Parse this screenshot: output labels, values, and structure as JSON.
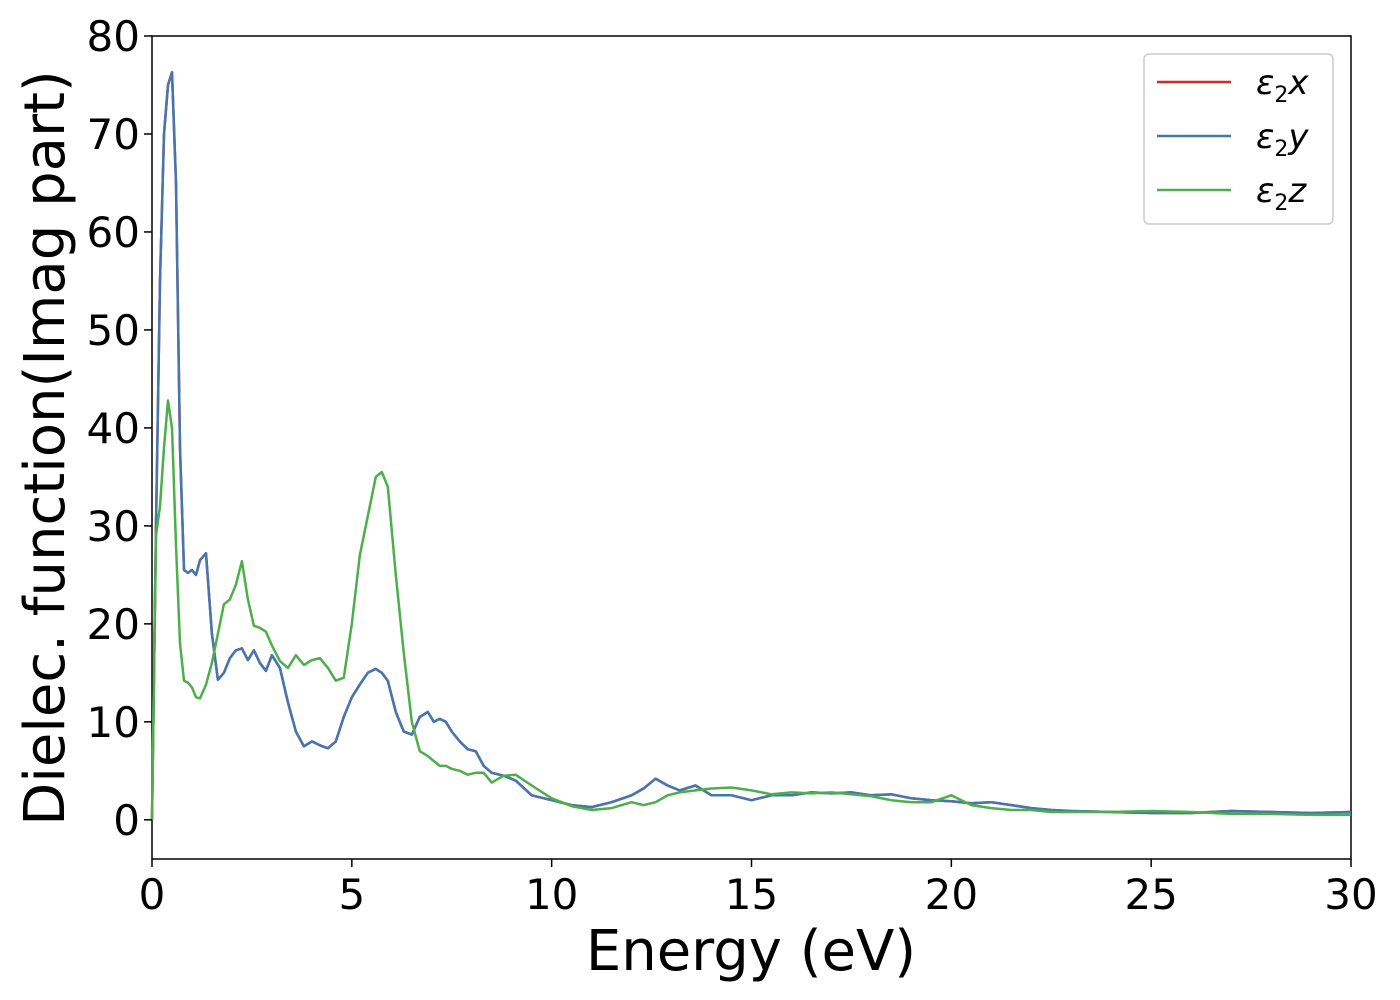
{
  "chart_data": {
    "type": "line",
    "xlabel": "Energy (eV)",
    "ylabel": "Dielec. function(Imag part)",
    "xlim": [
      0,
      30
    ],
    "ylim": [
      -4,
      80
    ],
    "xticks": [
      0,
      5,
      10,
      15,
      20,
      25,
      30
    ],
    "yticks": [
      0,
      10,
      20,
      30,
      40,
      50,
      60,
      70,
      80
    ],
    "grid": false,
    "legend_position": "top-right",
    "series": [
      {
        "name": "ε2x",
        "legend_base": "ε",
        "legend_sub": "2",
        "legend_var": "x",
        "color": "#d62728",
        "x": [
          0,
          0.1,
          0.2,
          0.3,
          0.4,
          0.5,
          0.6,
          0.7,
          0.8,
          0.9,
          1.0,
          1.1,
          1.2,
          1.35,
          1.5,
          1.65,
          1.8,
          1.95,
          2.1,
          2.25,
          2.4,
          2.55,
          2.7,
          2.85,
          3.0,
          3.2,
          3.4,
          3.6,
          3.8,
          4.0,
          4.2,
          4.4,
          4.6,
          4.8,
          5.0,
          5.2,
          5.4,
          5.6,
          5.75,
          5.9,
          6.1,
          6.3,
          6.5,
          6.7,
          6.9,
          7.05,
          7.2,
          7.35,
          7.5,
          7.7,
          7.9,
          8.1,
          8.3,
          8.5,
          8.8,
          9.1,
          9.5,
          10.0,
          10.5,
          11.0,
          11.5,
          12.0,
          12.3,
          12.6,
          12.9,
          13.2,
          13.6,
          14.0,
          14.5,
          15.0,
          15.5,
          16.0,
          16.5,
          17.0,
          17.5,
          18.0,
          18.5,
          19.0,
          19.5,
          20.0,
          20.5,
          21.0,
          21.5,
          22.0,
          22.5,
          23.0,
          24.0,
          25.0,
          26.0,
          27.0,
          28.0,
          29.0,
          30.0
        ],
        "y": [
          0,
          30,
          55,
          70,
          75,
          76.3,
          65,
          38,
          25.5,
          25.2,
          25.5,
          25.0,
          26.5,
          27.2,
          19,
          14.3,
          15,
          16.5,
          17.3,
          17.5,
          16.3,
          17.3,
          16,
          15.2,
          16.8,
          15.5,
          12,
          9,
          7.5,
          8,
          7.6,
          7.3,
          8,
          10.5,
          12.5,
          13.8,
          15,
          15.4,
          15,
          14.2,
          11,
          9,
          8.7,
          10.5,
          11,
          10,
          10.3,
          10,
          9,
          8,
          7.2,
          7,
          5.5,
          4.8,
          4.5,
          4,
          2.5,
          2,
          1.5,
          1.3,
          1.8,
          2.5,
          3.2,
          4.2,
          3.5,
          3,
          3.5,
          2.5,
          2.5,
          2,
          2.5,
          2.5,
          2.8,
          2.7,
          2.8,
          2.5,
          2.6,
          2.2,
          2.0,
          1.9,
          1.7,
          1.8,
          1.5,
          1.2,
          1.0,
          0.9,
          0.8,
          0.7,
          0.7,
          0.9,
          0.8,
          0.7,
          0.8
        ]
      },
      {
        "name": "ε2y",
        "legend_base": "ε",
        "legend_sub": "2",
        "legend_var": "y",
        "color": "#4277b0",
        "x": [
          0,
          0.1,
          0.2,
          0.3,
          0.4,
          0.5,
          0.6,
          0.7,
          0.8,
          0.9,
          1.0,
          1.1,
          1.2,
          1.35,
          1.5,
          1.65,
          1.8,
          1.95,
          2.1,
          2.25,
          2.4,
          2.55,
          2.7,
          2.85,
          3.0,
          3.2,
          3.4,
          3.6,
          3.8,
          4.0,
          4.2,
          4.4,
          4.6,
          4.8,
          5.0,
          5.2,
          5.4,
          5.6,
          5.75,
          5.9,
          6.1,
          6.3,
          6.5,
          6.7,
          6.9,
          7.05,
          7.2,
          7.35,
          7.5,
          7.7,
          7.9,
          8.1,
          8.3,
          8.5,
          8.8,
          9.1,
          9.5,
          10.0,
          10.5,
          11.0,
          11.5,
          12.0,
          12.3,
          12.6,
          12.9,
          13.2,
          13.6,
          14.0,
          14.5,
          15.0,
          15.5,
          16.0,
          16.5,
          17.0,
          17.5,
          18.0,
          18.5,
          19.0,
          19.5,
          20.0,
          20.5,
          21.0,
          21.5,
          22.0,
          22.5,
          23.0,
          24.0,
          25.0,
          26.0,
          27.0,
          28.0,
          29.0,
          30.0
        ],
        "y": [
          0,
          30,
          55,
          70,
          75,
          76.3,
          65,
          38,
          25.5,
          25.2,
          25.5,
          25.0,
          26.5,
          27.2,
          19,
          14.3,
          15,
          16.5,
          17.3,
          17.5,
          16.3,
          17.3,
          16,
          15.2,
          16.8,
          15.5,
          12,
          9,
          7.5,
          8,
          7.6,
          7.3,
          8,
          10.5,
          12.5,
          13.8,
          15,
          15.4,
          15,
          14.2,
          11,
          9,
          8.7,
          10.5,
          11,
          10,
          10.3,
          10,
          9,
          8,
          7.2,
          7,
          5.5,
          4.8,
          4.5,
          4,
          2.5,
          2,
          1.5,
          1.3,
          1.8,
          2.5,
          3.2,
          4.2,
          3.5,
          3,
          3.5,
          2.5,
          2.5,
          2,
          2.5,
          2.5,
          2.8,
          2.7,
          2.8,
          2.5,
          2.6,
          2.2,
          2.0,
          1.9,
          1.7,
          1.8,
          1.5,
          1.2,
          1.0,
          0.9,
          0.8,
          0.7,
          0.7,
          0.9,
          0.8,
          0.7,
          0.8
        ]
      },
      {
        "name": "ε2z",
        "legend_base": "ε",
        "legend_sub": "2",
        "legend_var": "z",
        "color": "#4daf4a",
        "x": [
          0,
          0.1,
          0.2,
          0.3,
          0.4,
          0.5,
          0.6,
          0.7,
          0.8,
          0.9,
          1.0,
          1.1,
          1.2,
          1.35,
          1.5,
          1.65,
          1.8,
          1.95,
          2.1,
          2.25,
          2.4,
          2.55,
          2.7,
          2.85,
          3.0,
          3.2,
          3.4,
          3.6,
          3.8,
          4.0,
          4.2,
          4.4,
          4.6,
          4.8,
          5.0,
          5.2,
          5.4,
          5.6,
          5.75,
          5.9,
          6.1,
          6.3,
          6.5,
          6.7,
          6.9,
          7.05,
          7.2,
          7.35,
          7.5,
          7.7,
          7.9,
          8.1,
          8.3,
          8.5,
          8.8,
          9.1,
          9.5,
          10.0,
          10.5,
          11.0,
          11.5,
          12.0,
          12.3,
          12.6,
          12.9,
          13.2,
          13.6,
          14.0,
          14.5,
          15.0,
          15.5,
          16.0,
          16.5,
          17.0,
          17.5,
          18.0,
          18.5,
          19.0,
          19.5,
          20.0,
          20.5,
          21.0,
          21.5,
          22.0,
          22.5,
          23.0,
          24.0,
          25.0,
          26.0,
          27.0,
          28.0,
          29.0,
          30.0
        ],
        "y": [
          0,
          29,
          32,
          38,
          42.8,
          40,
          28,
          18,
          14.2,
          14,
          13.5,
          12.5,
          12.4,
          13.8,
          16,
          19,
          22,
          22.5,
          24,
          26.4,
          22.5,
          19.8,
          19.6,
          19.2,
          17.8,
          16.2,
          15.5,
          16.8,
          15.8,
          16.3,
          16.5,
          15.5,
          14.2,
          14.5,
          20,
          27,
          31,
          35,
          35.5,
          34,
          25,
          17,
          10,
          7,
          6.5,
          6,
          5.5,
          5.5,
          5.2,
          5,
          4.6,
          4.8,
          4.8,
          3.8,
          4.5,
          4.6,
          3.5,
          2.2,
          1.4,
          1,
          1.2,
          1.8,
          1.5,
          1.8,
          2.5,
          2.8,
          3,
          3.2,
          3.3,
          3,
          2.6,
          2.8,
          2.7,
          2.8,
          2.6,
          2.4,
          2,
          1.8,
          1.8,
          2.5,
          1.5,
          1.2,
          1.0,
          1.0,
          0.8,
          0.8,
          0.8,
          0.9,
          0.8,
          0.6,
          0.6,
          0.5,
          0.5
        ]
      }
    ]
  }
}
